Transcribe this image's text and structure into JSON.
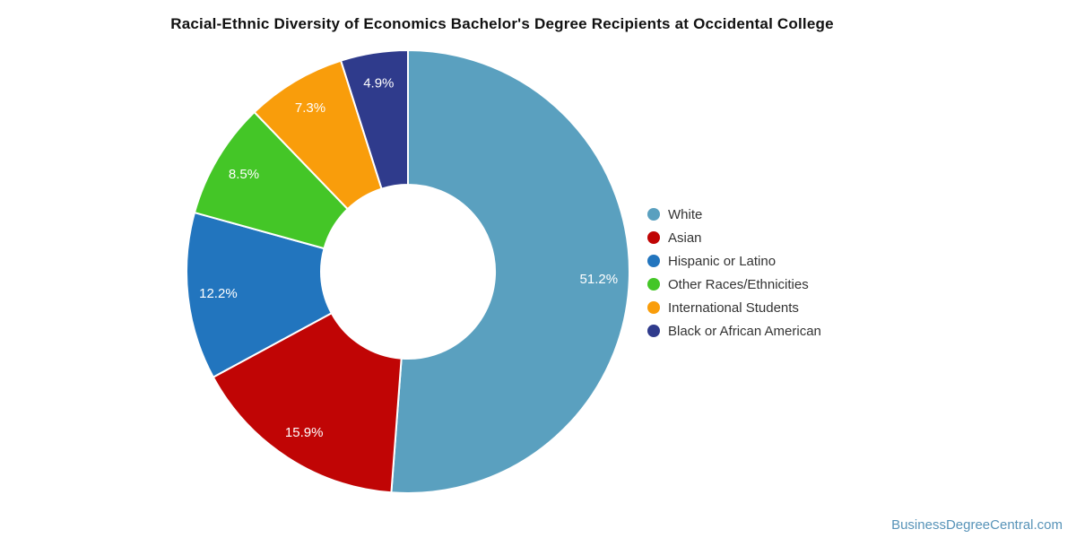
{
  "page": {
    "footer_link": "BusinessDegreeCentral.com",
    "background": "#ffffff",
    "footer_link_color": "#5793b8"
  },
  "chart_data": {
    "type": "pie",
    "subtype": "donut",
    "title": "Racial-Ethnic Diversity of Economics Bachelor's Degree Recipients at Occidental College",
    "categories": [
      "White",
      "Asian",
      "Hispanic or Latino",
      "Other Races/Ethnicities",
      "International Students",
      "Black or African American"
    ],
    "values": [
      51.2,
      15.9,
      12.2,
      8.5,
      7.3,
      4.9
    ],
    "labels": [
      "51.2%",
      "15.9%",
      "12.2%",
      "8.5%",
      "7.3%",
      "4.9%"
    ],
    "colors": [
      "#5aa0bf",
      "#c00505",
      "#2275be",
      "#44c627",
      "#f99d0b",
      "#2f3b8c"
    ],
    "label_color": "#ffffff",
    "legend_position": "right",
    "start_angle_deg": 0,
    "direction": "clockwise",
    "inner_radius_ratio": 0.39
  }
}
